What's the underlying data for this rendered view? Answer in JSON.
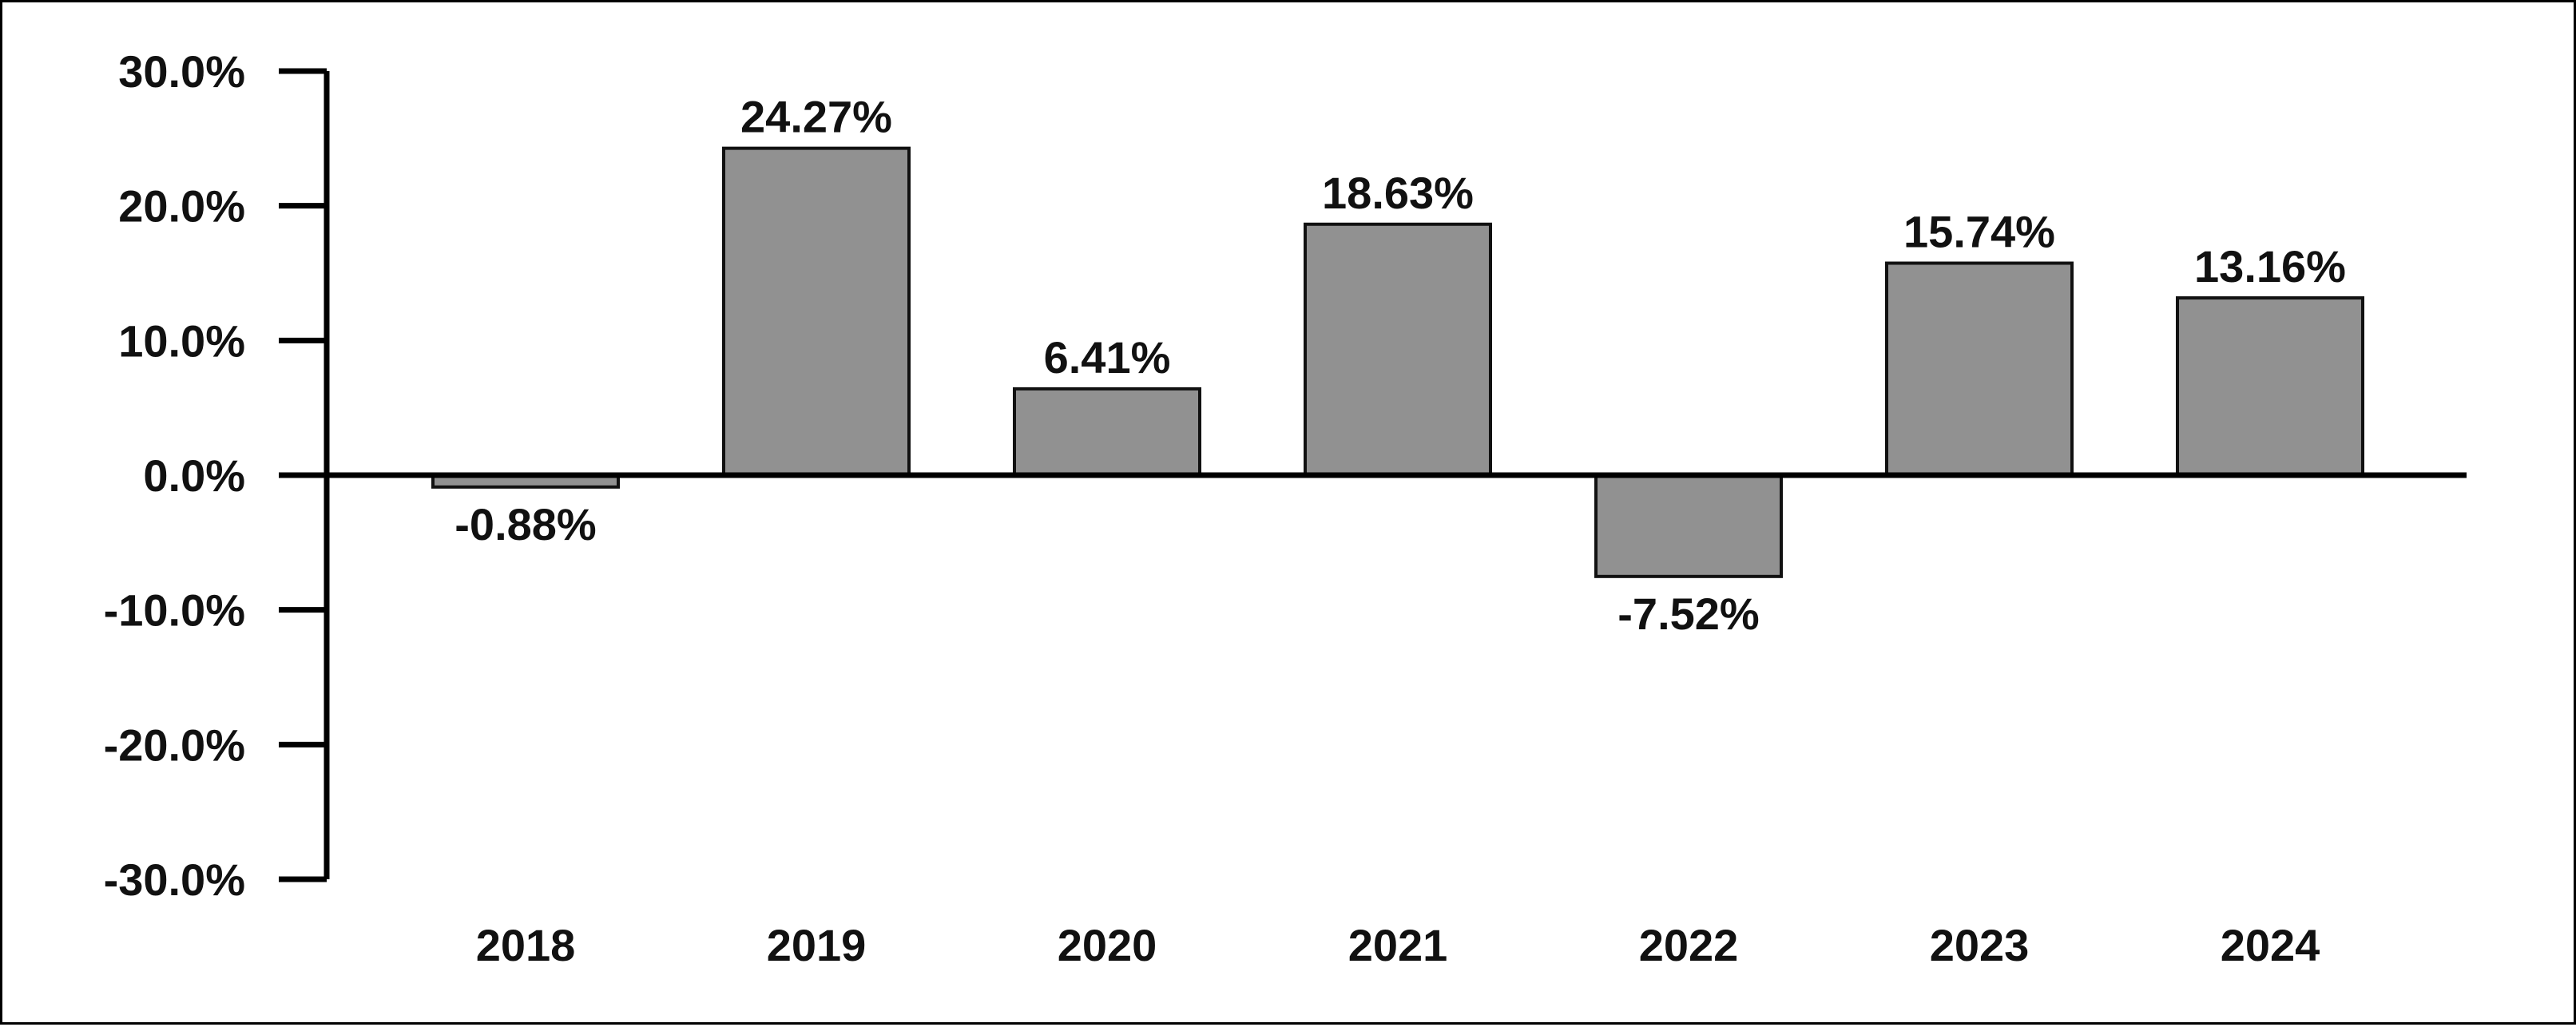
{
  "chart_data": {
    "type": "bar",
    "categories": [
      "2018",
      "2019",
      "2020",
      "2021",
      "2022",
      "2023",
      "2024"
    ],
    "values": [
      -0.88,
      24.27,
      6.41,
      18.63,
      -7.52,
      15.74,
      13.16
    ],
    "data_labels": [
      "-0.88%",
      "24.27%",
      "6.41%",
      "18.63%",
      "-7.52%",
      "15.74%",
      "13.16%"
    ],
    "ylim": [
      -30,
      30
    ],
    "yticks": [
      30,
      20,
      10,
      0,
      -10,
      -20,
      -30
    ],
    "ytick_labels": [
      "30.0%",
      "20.0%",
      "10.0%",
      "0.0%",
      "-10.0%",
      "-20.0%",
      "-30.0%"
    ],
    "title": "",
    "xlabel": "",
    "ylabel": "",
    "grid": false,
    "legend": "none",
    "colors": {
      "bar_fill": "#919191",
      "bar_stroke": "#111111",
      "axis": "#000000",
      "text": "#111111"
    }
  }
}
